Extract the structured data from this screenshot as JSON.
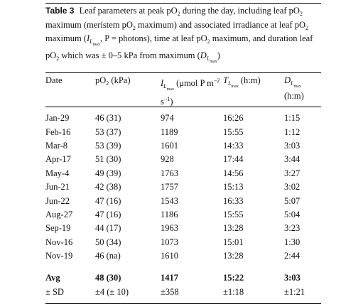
{
  "caption": {
    "label": "Table 3",
    "parts": [
      {
        "text": "Leaf parameters at peak pO"
      },
      {
        "text": "2",
        "style": "sub"
      },
      {
        "text": " during the day, including leaf pO"
      },
      {
        "text": "2",
        "style": "sub"
      },
      {
        "text": " maximum (meristem pO"
      },
      {
        "text": "2",
        "style": "sub"
      },
      {
        "text": " maximum) and associated irradiance at leaf pO"
      },
      {
        "text": "2",
        "style": "sub"
      },
      {
        "text": " maximum ("
      },
      {
        "text": "I",
        "style": "italic"
      },
      {
        "text": "L",
        "style": "sub-italic"
      },
      {
        "text": "max",
        "style": "subsub"
      },
      {
        "text": ", P = photons), time at leaf pO"
      },
      {
        "text": "2",
        "style": "sub"
      },
      {
        "text": " maximum, and duration leaf pO"
      },
      {
        "text": "2",
        "style": "sub"
      },
      {
        "text": " which was ± 0–5 kPa from maximum ("
      },
      {
        "text": "D",
        "style": "italic"
      },
      {
        "text": "L",
        "style": "sub-italic"
      },
      {
        "text": "max",
        "style": "subsub"
      },
      {
        "text": ")"
      }
    ]
  },
  "table": {
    "header": [
      [
        {
          "text": "Date"
        }
      ],
      [
        {
          "text": "pO"
        },
        {
          "text": "2",
          "style": "sub"
        },
        {
          "text": " (kPa)"
        }
      ],
      [
        {
          "text": "I",
          "style": "italic"
        },
        {
          "text": "L",
          "style": "sub-italic"
        },
        {
          "text": "max",
          "style": "subsub"
        },
        {
          "text": " (μmol P m"
        },
        {
          "text": "−2",
          "style": "sup"
        },
        {
          "text": " s"
        },
        {
          "text": "−1",
          "style": "sup"
        },
        {
          "text": ")"
        }
      ],
      [
        {
          "text": "T",
          "style": "italic"
        },
        {
          "text": "L",
          "style": "sub-italic"
        },
        {
          "text": "max",
          "style": "subsub"
        },
        {
          "text": " (h:m)"
        }
      ],
      [
        {
          "text": "D",
          "style": "italic"
        },
        {
          "text": "L",
          "style": "sub-italic"
        },
        {
          "text": "max",
          "style": "subsub"
        },
        {
          "text": " (h:m)"
        }
      ]
    ],
    "rows": [
      [
        "Jan-29",
        "46 (31)",
        "974",
        "16:26",
        "1:15"
      ],
      [
        "Feb-16",
        "53 (37)",
        "1189",
        "15:55",
        "1:12"
      ],
      [
        "Mar-8",
        "53 (39)",
        "1601",
        "14:33",
        "3:03"
      ],
      [
        "Apr-17",
        "51 (30)",
        "928",
        "17:44",
        "3:44"
      ],
      [
        "May-4",
        "49 (39)",
        "1763",
        "14:56",
        "3:27"
      ],
      [
        "Jun-21",
        "42 (38)",
        "1757",
        "15:13",
        "3:02"
      ],
      [
        "Jun-22",
        "47 (16)",
        "1543",
        "16:33",
        "5:07"
      ],
      [
        "Aug-27",
        "47 (16)",
        "1186",
        "15:55",
        "5:04"
      ],
      [
        "Sep-19",
        "44 (17)",
        "1963",
        "13:28",
        "3:23"
      ],
      [
        "Nov-16",
        "50 (34)",
        "1073",
        "15:01",
        "1:30"
      ],
      [
        "Nov-19",
        "46 (na)",
        "1610",
        "13:28",
        "2:44"
      ]
    ],
    "summary": [
      {
        "cells": [
          "Avg",
          "48 (30)",
          "1417",
          "15:22",
          "3:03"
        ],
        "bold": true
      },
      {
        "cells": [
          "± SD",
          "±4 (± 10)",
          "±358",
          "±1:18",
          "±1:21"
        ],
        "bold": false
      }
    ]
  }
}
